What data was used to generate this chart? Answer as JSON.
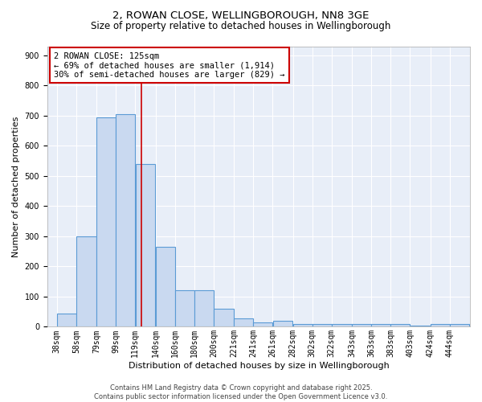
{
  "title_line1": "2, ROWAN CLOSE, WELLINGBOROUGH, NN8 3GE",
  "title_line2": "Size of property relative to detached houses in Wellingborough",
  "xlabel": "Distribution of detached houses by size in Wellingborough",
  "ylabel": "Number of detached properties",
  "bar_left_edges": [
    38,
    58,
    79,
    99,
    119,
    140,
    160,
    180,
    200,
    221,
    241,
    261,
    282,
    302,
    322,
    343,
    363,
    383,
    403,
    424,
    444
  ],
  "bar_widths": [
    20,
    21,
    20,
    20,
    21,
    20,
    20,
    20,
    21,
    20,
    20,
    21,
    20,
    20,
    21,
    20,
    20,
    20,
    21,
    20,
    20
  ],
  "bar_heights": [
    45,
    300,
    695,
    705,
    540,
    265,
    120,
    120,
    60,
    27,
    15,
    20,
    8,
    8,
    8,
    8,
    10,
    8,
    5,
    8,
    8
  ],
  "bar_facecolor": "#c9d9f0",
  "bar_edgecolor": "#5b9bd5",
  "bar_linewidth": 0.8,
  "vline_x": 125,
  "vline_color": "#cc0000",
  "vline_linewidth": 1.2,
  "annotation_text": "2 ROWAN CLOSE: 125sqm\n← 69% of detached houses are smaller (1,914)\n30% of semi-detached houses are larger (829) →",
  "annotation_box_facecolor": "#ffffff",
  "annotation_box_edgecolor": "#cc0000",
  "xlim_left": 28,
  "xlim_right": 465,
  "ylim_bottom": 0,
  "ylim_top": 930,
  "yticks": [
    0,
    100,
    200,
    300,
    400,
    500,
    600,
    700,
    800,
    900
  ],
  "xtick_labels": [
    "38sqm",
    "58sqm",
    "79sqm",
    "99sqm",
    "119sqm",
    "140sqm",
    "160sqm",
    "180sqm",
    "200sqm",
    "221sqm",
    "241sqm",
    "261sqm",
    "282sqm",
    "302sqm",
    "322sqm",
    "343sqm",
    "363sqm",
    "383sqm",
    "403sqm",
    "424sqm",
    "444sqm"
  ],
  "xtick_positions": [
    38,
    58,
    79,
    99,
    119,
    140,
    160,
    180,
    200,
    221,
    241,
    261,
    282,
    302,
    322,
    343,
    363,
    383,
    403,
    424,
    444
  ],
  "background_color": "#e8eef8",
  "grid_color": "#ffffff",
  "footer_text": "Contains HM Land Registry data © Crown copyright and database right 2025.\nContains public sector information licensed under the Open Government Licence v3.0.",
  "title_fontsize": 9.5,
  "subtitle_fontsize": 8.5,
  "axis_label_fontsize": 8,
  "tick_fontsize": 7,
  "annotation_fontsize": 7.5,
  "footer_fontsize": 6
}
